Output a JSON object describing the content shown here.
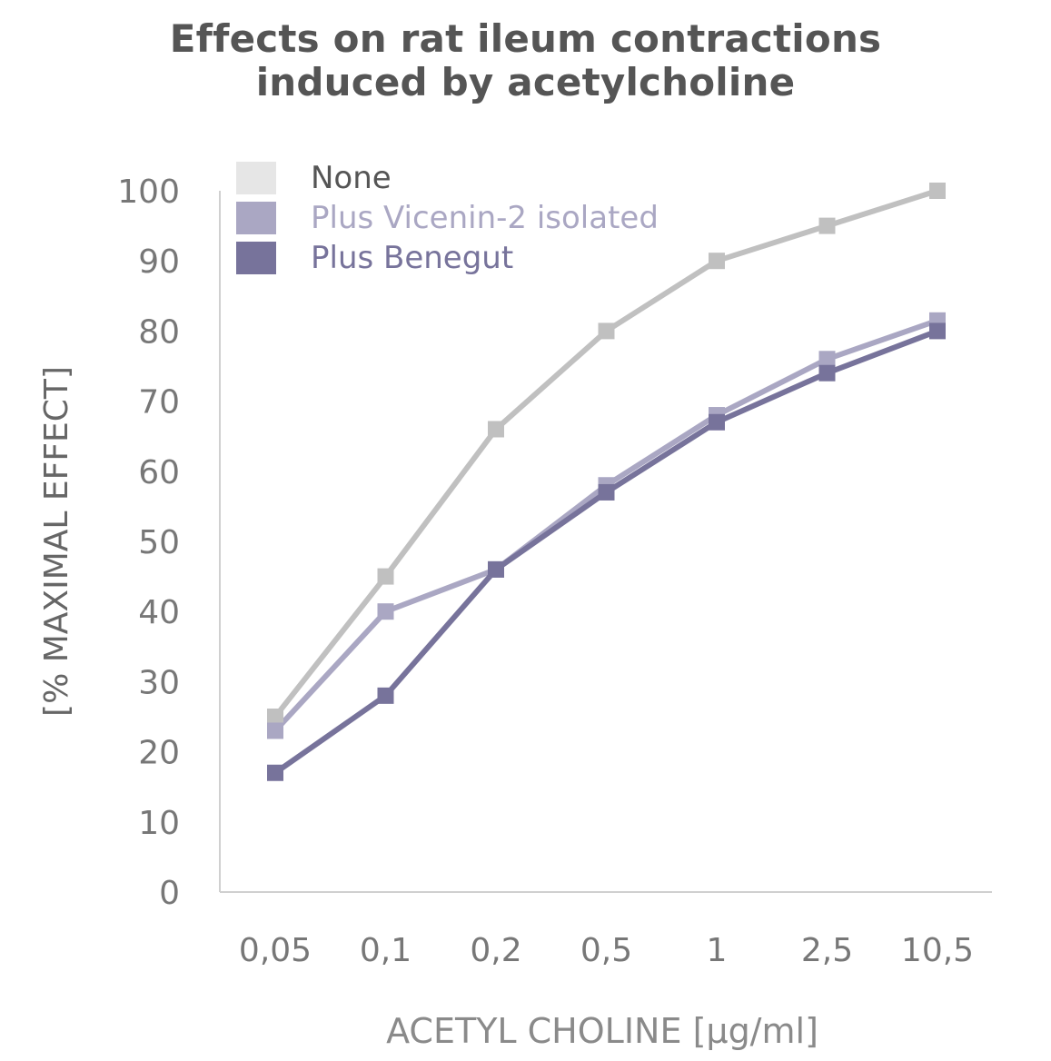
{
  "chart_data": {
    "type": "line",
    "title_line1": "Effects on rat ileum contractions",
    "title_line2": "induced by acetylcholine",
    "xlabel": "ACETYL CHOLINE  [µg/ml]",
    "ylabel": "[% MAXIMAL EFFECT]",
    "categories": [
      "0,05",
      "0,1",
      "0,2",
      "0,5",
      "1",
      "2,5",
      "10,5"
    ],
    "ylim": [
      0,
      100
    ],
    "yticks": [
      "0",
      "10",
      "20",
      "30",
      "40",
      "50",
      "60",
      "70",
      "80",
      "90",
      "100"
    ],
    "grid": false,
    "legend_position": "top-left",
    "series": [
      {
        "name": "None",
        "color": "#c0c0c0",
        "swatch": "#e6e6e6",
        "label_color": "#555555",
        "values": [
          25,
          45,
          66,
          80,
          90,
          95,
          100
        ]
      },
      {
        "name": "Plus Vicenin-2 isolated",
        "color": "#aaa7c3",
        "swatch": "#aaa7c3",
        "label_color": "#aaa7c3",
        "values": [
          23,
          40,
          46,
          58,
          68,
          76,
          81.5
        ]
      },
      {
        "name": "Plus Benegut",
        "color": "#77739b",
        "swatch": "#77739b",
        "label_color": "#77739b",
        "values": [
          17,
          28,
          46,
          57,
          67,
          74,
          80
        ]
      }
    ]
  }
}
